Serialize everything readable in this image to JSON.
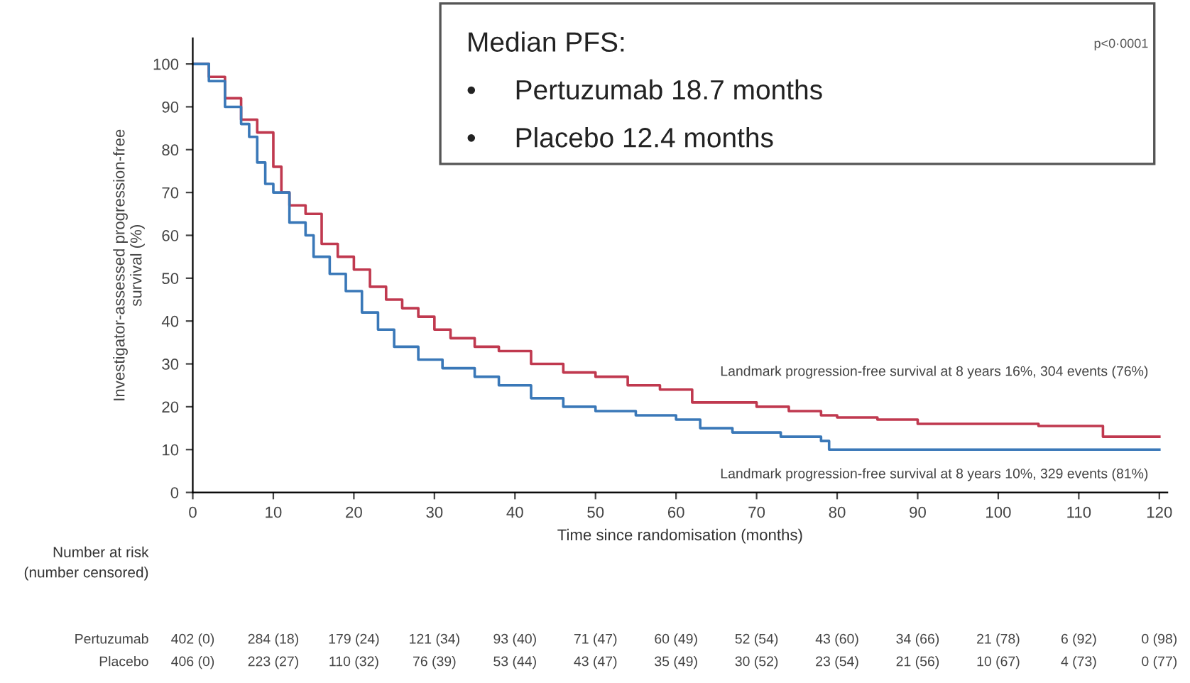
{
  "chart_data": {
    "type": "step",
    "xlabel": "Time since randomisation (months)",
    "ylabel": "Investigator-assessed progression-free\nsurvival (%)",
    "x": [
      0,
      2,
      4,
      6,
      8,
      10,
      11,
      12,
      14,
      16,
      18,
      20,
      22,
      24,
      26,
      28,
      30,
      32,
      35,
      38,
      42,
      46,
      50,
      54,
      58,
      62,
      66,
      70,
      74,
      78,
      80,
      85,
      90,
      95,
      100,
      105,
      110,
      113,
      118,
      120
    ],
    "series": [
      {
        "color": "#c0394f",
        "values": [
          100,
          97,
          92,
          87,
          84,
          76,
          70,
          67,
          65,
          58,
          55,
          52,
          48,
          45,
          43,
          41,
          38,
          36,
          34,
          33,
          30,
          28,
          27,
          25,
          24,
          21,
          21,
          20,
          19,
          18,
          17.5,
          17,
          16,
          16,
          16,
          15.5,
          15.5,
          13,
          13,
          13
        ]
      },
      {
        "color": "#3a78b8",
        "x": [
          0,
          2,
          4,
          6,
          7,
          8,
          9,
          10,
          12,
          14,
          15,
          17,
          19,
          21,
          23,
          25,
          28,
          31,
          35,
          38,
          42,
          46,
          50,
          55,
          60,
          63,
          67,
          73,
          78,
          79,
          90,
          100,
          110,
          120
        ],
        "values": [
          100,
          96,
          90,
          86,
          83,
          77,
          72,
          70,
          63,
          60,
          55,
          51,
          47,
          42,
          38,
          34,
          31,
          29,
          27,
          25,
          22,
          20,
          19,
          18,
          17,
          15,
          14,
          13,
          12,
          10,
          10,
          10,
          10,
          10
        ]
      }
    ],
    "xlim": [
      0,
      121
    ],
    "xticks": [
      0,
      10,
      20,
      30,
      40,
      50,
      60,
      70,
      80,
      90,
      100,
      110,
      120
    ],
    "ylim": [
      0,
      106
    ],
    "yticks": [
      0,
      10,
      20,
      30,
      40,
      50,
      60,
      70,
      80,
      90,
      100
    ],
    "grid": false,
    "legend": false,
    "line_style": "solid",
    "annotations": [
      "Median PFS:",
      "•     Pertuzumab 18.7 months",
      "•     Placebo 12.4 months",
      "p<0·0001",
      "Landmark progression-free survival at 8 years 16%, 304 events (76%)",
      "Landmark progression-free survival at 8 years 10%, 329 events (81%)",
      "Number at risk\n(number censored)",
      "Pertuzumab",
      "402 (0)",
      "284 (18)",
      "179 (24)",
      "121 (34)",
      "93 (40)",
      "71 (47)",
      "60 (49)",
      "52 (54)",
      "43 (60)",
      "34 (66)",
      "21 (78)",
      "6 (92)",
      "0 (98)",
      "Placebo",
      "406 (0)",
      "223 (27)",
      "110 (32)",
      "76 (39)",
      "53 (44)",
      "43 (47)",
      "35 (49)",
      "30 (52)",
      "23 (54)",
      "21 (56)",
      "10 (67)",
      "4 (73)",
      "0 (77)"
    ]
  }
}
